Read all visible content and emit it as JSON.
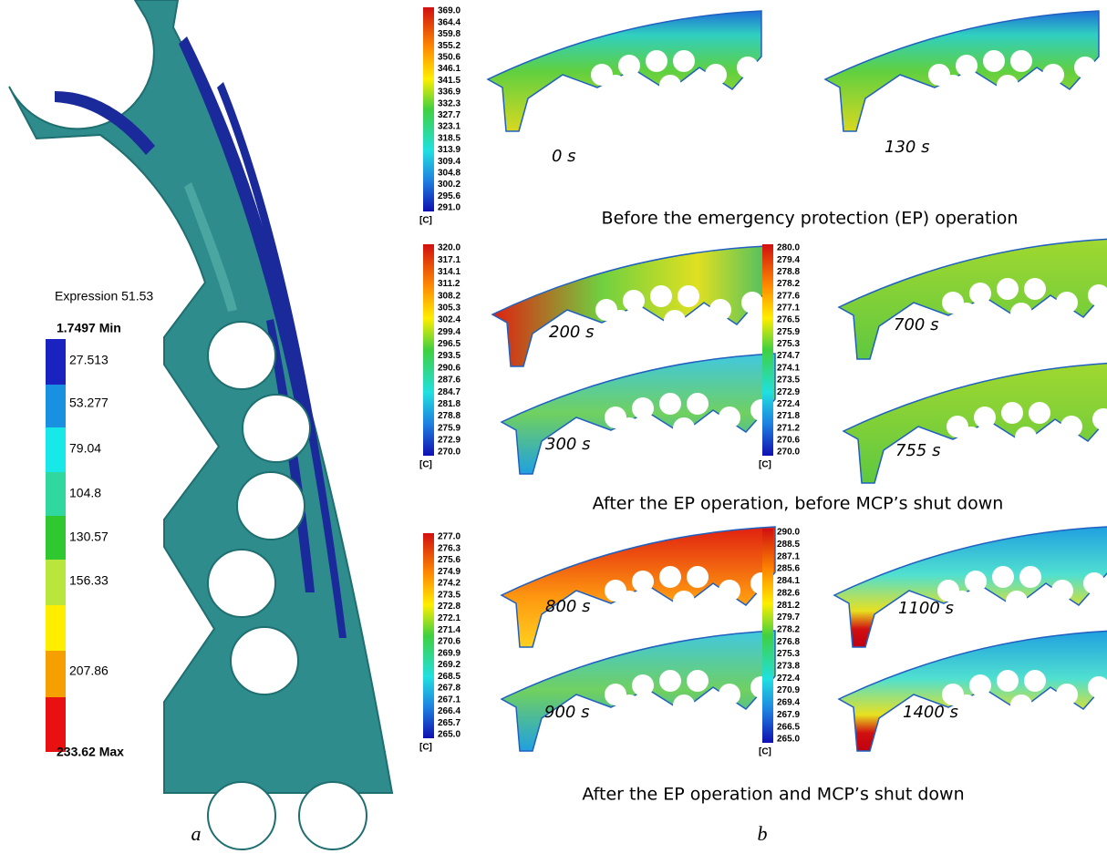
{
  "panel_a": {
    "label": "a",
    "legend": {
      "title": "Expression 51.53",
      "min_label": "1.7497 Min",
      "max_label": "233.62 Max",
      "levels": [
        "27.513",
        "53.277",
        "79.04",
        "104.8",
        "130.57",
        "156.33",
        "207.86"
      ]
    }
  },
  "panel_b": {
    "label": "b",
    "colorbars": [
      {
        "unit": "[C]",
        "ticks": [
          "369.0",
          "364.4",
          "359.8",
          "355.2",
          "350.6",
          "346.1",
          "341.5",
          "336.9",
          "332.3",
          "327.7",
          "323.1",
          "318.5",
          "313.9",
          "309.4",
          "304.8",
          "300.2",
          "295.6",
          "291.0"
        ]
      },
      {
        "unit": "[C]",
        "ticks": [
          "320.0",
          "317.1",
          "314.1",
          "311.2",
          "308.2",
          "305.3",
          "302.4",
          "299.4",
          "296.5",
          "293.5",
          "290.6",
          "287.6",
          "284.7",
          "281.8",
          "278.8",
          "275.9",
          "272.9",
          "270.0"
        ]
      },
      {
        "unit": "[C]",
        "ticks": [
          "280.0",
          "279.4",
          "278.8",
          "278.2",
          "277.6",
          "277.1",
          "276.5",
          "275.9",
          "275.3",
          "274.7",
          "274.1",
          "273.5",
          "272.9",
          "272.4",
          "271.8",
          "271.2",
          "270.6",
          "270.0"
        ]
      },
      {
        "unit": "[C]",
        "ticks": [
          "277.0",
          "276.3",
          "275.6",
          "274.9",
          "274.2",
          "273.5",
          "272.8",
          "272.1",
          "271.4",
          "270.6",
          "269.9",
          "269.2",
          "268.5",
          "267.8",
          "267.1",
          "266.4",
          "265.7",
          "265.0"
        ]
      },
      {
        "unit": "[C]",
        "ticks": [
          "290.0",
          "288.5",
          "287.1",
          "285.6",
          "284.1",
          "282.6",
          "281.2",
          "279.7",
          "278.2",
          "276.8",
          "275.3",
          "273.8",
          "272.4",
          "270.9",
          "269.4",
          "267.9",
          "266.5",
          "265.0"
        ]
      }
    ],
    "snapshots": [
      "0 s",
      "130 s",
      "200 s",
      "700 s",
      "300 s",
      "755 s",
      "800 s",
      "1100 s",
      "900 s",
      "1400 s"
    ],
    "captions": [
      "Before the emergency protection (EP) operation",
      "After the EP operation, before MCP’s shut down",
      "After the EP operation and MCP’s shut down"
    ]
  }
}
